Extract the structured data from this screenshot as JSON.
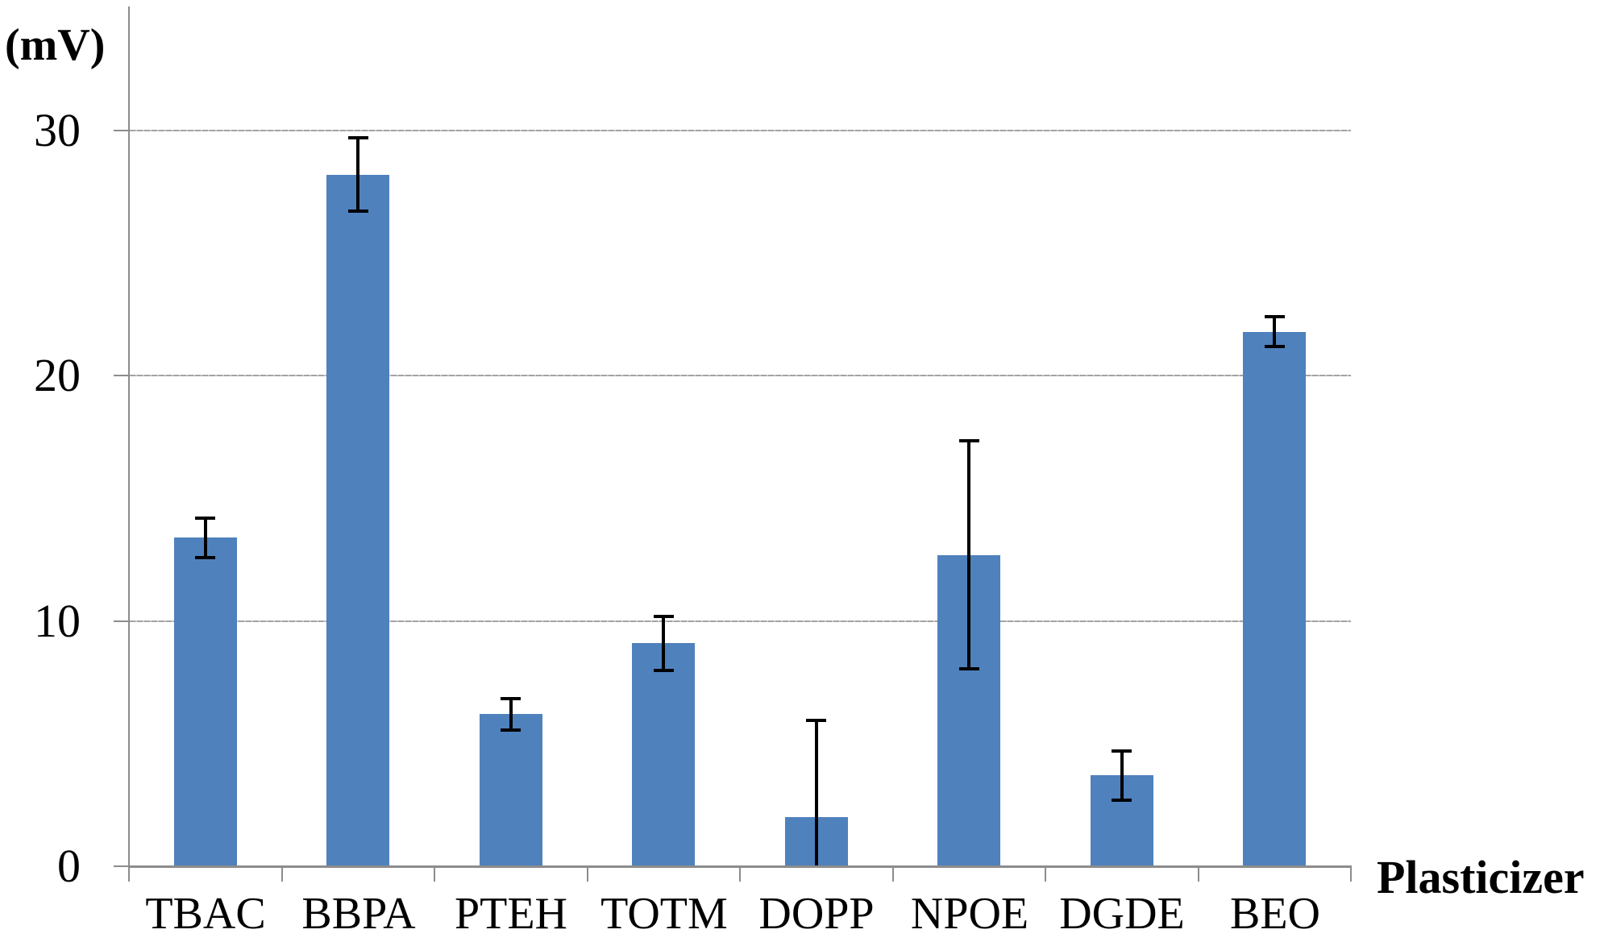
{
  "figure": {
    "background_color": "#ffffff",
    "text_color": "#000000",
    "axis_color": "#8c8c8c",
    "gridline_color": "#a3a3a3",
    "error_bar_color": "#000000"
  },
  "chart_data": {
    "type": "bar",
    "title": "",
    "xlabel": "Plasticizer",
    "ylabel": "(mV)",
    "categories": [
      "TBAC",
      "BBPA",
      "PTEH",
      "TOTM",
      "DOPP",
      "NPOE",
      "DGDE",
      "BEO"
    ],
    "values": [
      13.4,
      28.2,
      6.2,
      9.1,
      2.0,
      12.7,
      3.7,
      21.8
    ],
    "errors": [
      0.8,
      1.5,
      0.65,
      1.1,
      3.95,
      4.65,
      1.0,
      0.6
    ],
    "error_note": "symmetric error bars, lower whisker clipped at 0 (DOPP)",
    "bar_color": "#4F81BD",
    "yticks": [
      0,
      10,
      20,
      30
    ],
    "ylim": [
      0,
      35
    ],
    "grid": true,
    "legend": null
  }
}
